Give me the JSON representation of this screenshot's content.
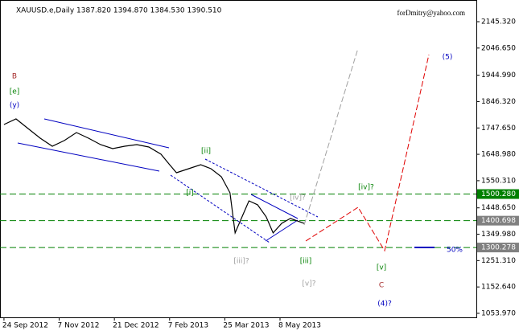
{
  "chart_data": {
    "type": "line",
    "title": "XAUUSD.e,Daily  1387.820 1394.870 1384.530 1390.510",
    "subtitle": "forDmitry@yahoo.com",
    "x": [
      0,
      7,
      14,
      21,
      28,
      35,
      42,
      49,
      56,
      63,
      70,
      77,
      84,
      91,
      96,
      100,
      107,
      114,
      120,
      126,
      131,
      134,
      138,
      142,
      147,
      152,
      156,
      161,
      166,
      170,
      174
    ],
    "series": [
      {
        "name": "XAUUSD.e",
        "color": "#000000",
        "values": [
          1760.6,
          1781.6,
          1745.5,
          1709.5,
          1679.4,
          1700.5,
          1730.5,
          1709.5,
          1685.4,
          1670.4,
          1679.4,
          1685.4,
          1676.4,
          1649.4,
          1610.3,
          1580.2,
          1595.2,
          1610.3,
          1595.2,
          1565.2,
          1505.1,
          1354.8,
          1414.9,
          1475.0,
          1460.0,
          1414.9,
          1354.8,
          1390.8,
          1408.9,
          1399.9,
          1390.5
        ]
      }
    ],
    "xlim": [
      -2.3,
      273.8
    ],
    "xticks": [
      {
        "value": 0,
        "label": "24 Sep 2012"
      },
      {
        "value": 32,
        "label": "7 Nov 2012"
      },
      {
        "value": 64,
        "label": "21 Dec 2012"
      },
      {
        "value": 96,
        "label": "7 Feb 2013"
      },
      {
        "value": 128,
        "label": "25 Mar 2013"
      },
      {
        "value": 160,
        "label": "8 May 2013"
      }
    ],
    "ylim": [
      1038.9,
      2226.5
    ],
    "yticks": [
      {
        "value": 2145.32,
        "label": "2145.320"
      },
      {
        "value": 2046.65,
        "label": "2046.650"
      },
      {
        "value": 1944.99,
        "label": "1944.990"
      },
      {
        "value": 1846.32,
        "label": "1846.320"
      },
      {
        "value": 1747.65,
        "label": "1747.650"
      },
      {
        "value": 1648.98,
        "label": "1648.980"
      },
      {
        "value": 1550.31,
        "label": "1550.310"
      },
      {
        "value": 1448.65,
        "label": "1448.650"
      },
      {
        "value": 1349.98,
        "label": "1349.980"
      },
      {
        "value": 1251.31,
        "label": "1251.310"
      },
      {
        "value": 1152.64,
        "label": "1152.640"
      },
      {
        "value": 1053.97,
        "label": "1053.970"
      }
    ],
    "levels": [
      {
        "value": 1500.28,
        "label": "1500.280",
        "color": "#008000"
      },
      {
        "value": 1400.698,
        "label": "1400.698",
        "color": "#808080"
      },
      {
        "value": 1300.278,
        "label": "1300.278",
        "color": "#808080"
      }
    ],
    "annotations": [
      "B",
      "[e]",
      "(y)",
      "[ii]",
      "[i]",
      "[iii]?",
      "[iii]",
      "[iv]?",
      "[v]?",
      "[iv]?",
      "[v]",
      "C",
      "(4)?",
      "(5)",
      "50%"
    ]
  }
}
